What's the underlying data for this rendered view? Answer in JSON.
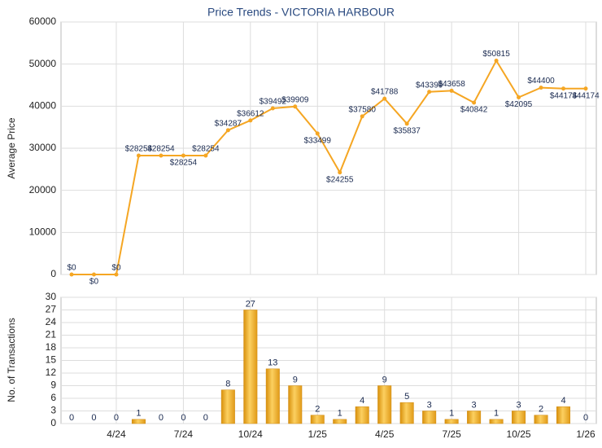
{
  "chart_data": [
    {
      "type": "line",
      "title": "Price Trends - VICTORIA HARBOUR",
      "ylabel": "Average Price",
      "values": [
        0,
        0,
        0,
        28254,
        28254,
        28254,
        28254,
        34287,
        36612,
        39492,
        39909,
        33499,
        24255,
        37580,
        41788,
        35837,
        43399,
        43658,
        40842,
        50815,
        42095,
        44400,
        44174,
        44174
      ],
      "value_labels": [
        "$0",
        "$0",
        "$0",
        "$28254",
        "$28254",
        "$28254",
        "$28254",
        "$34287",
        "$36612",
        "$39492",
        "$39909",
        "$33499",
        "$24255",
        "$37580",
        "$41788",
        "$35837",
        "$43399",
        "$43658",
        "$40842",
        "$50815",
        "$42095",
        "$44400",
        "$44174",
        "$44174"
      ],
      "color": "#f5a623",
      "ylim": [
        0,
        60000
      ],
      "yticks": [
        0,
        10000,
        20000,
        30000,
        40000,
        50000,
        60000
      ],
      "grid": true
    },
    {
      "type": "bar",
      "ylabel": "No. of Transactions",
      "categories": [
        null,
        null,
        "4/24",
        null,
        null,
        "7/24",
        null,
        null,
        "10/24",
        null,
        null,
        "1/25",
        null,
        null,
        "4/25",
        null,
        null,
        "7/25",
        null,
        null,
        "10/25",
        null,
        null,
        "1/26"
      ],
      "values": [
        0,
        0,
        0,
        1,
        0,
        0,
        0,
        8,
        27,
        13,
        9,
        2,
        1,
        4,
        9,
        5,
        3,
        1,
        3,
        1,
        3,
        2,
        4,
        0
      ],
      "color": "#f0b030",
      "ylim": [
        0,
        30
      ],
      "yticks": [
        0,
        3,
        6,
        9,
        12,
        15,
        18,
        21,
        24,
        27,
        30
      ],
      "grid": true
    }
  ]
}
